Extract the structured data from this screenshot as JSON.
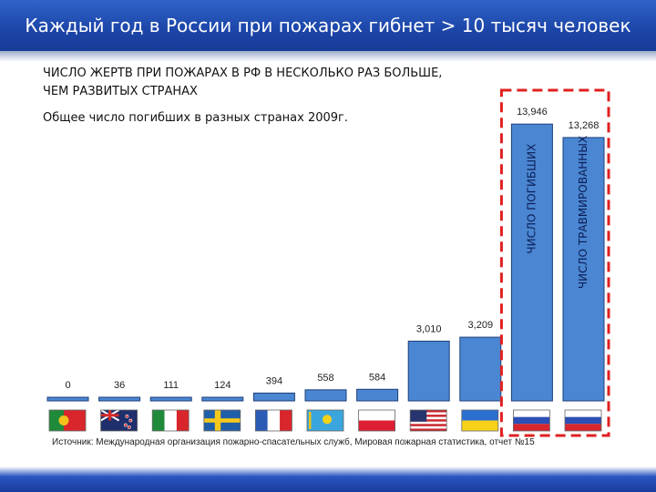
{
  "header": {
    "title": "Каждый год в России при пожарах гибнет > 10 тысяч человек"
  },
  "heading": {
    "line1": "ЧИСЛО ЖЕРТВ ПРИ ПОЖАРАХ В РФ В НЕСКОЛЬКО РАЗ БОЛЬШЕ,",
    "line2": "ЧЕМ РАЗВИТЫХ СТРАНАХ"
  },
  "subheading": "Общее число погибших в разных странах 2009г.",
  "source": "Источник: Международная организация пожарно-спасательных служб, Мировая пожарная статистика, отчет №15",
  "colors": {
    "bar": "#4a86d2",
    "bar_stroke": "#1e3f7a",
    "highlight": "#e02020",
    "header": "#1c45a8"
  },
  "chart_data": {
    "type": "bar",
    "categories": [
      "Португалия",
      "Новая Зеландия",
      "Италия",
      "Швеция",
      "Франция",
      "Казахстан",
      "Польша",
      "США",
      "Украина",
      "Россия",
      "Россия"
    ],
    "icons": [
      "portugal-flag",
      "new-zealand-flag",
      "italy-flag",
      "sweden-flag",
      "france-flag",
      "kazakhstan-flag",
      "poland-flag",
      "usa-flag",
      "ukraine-flag",
      "russia-flag",
      "russia-flag"
    ],
    "values": [
      0,
      36,
      111,
      124,
      394,
      558,
      584,
      3010,
      3209,
      13946,
      13268
    ],
    "value_labels": [
      "0",
      "36",
      "111",
      "124",
      "394",
      "558",
      "584",
      "3,010",
      "3,209",
      "13,946",
      "13,268"
    ],
    "bar_texts": [
      "",
      "",
      "",
      "",
      "",
      "",
      "",
      "",
      "",
      "ЧИСЛО ПОГИБШИХ",
      "ЧИСЛО ТРАВМИРОВАННЫХ"
    ],
    "highlight_group": [
      9,
      10
    ],
    "ylim": [
      0,
      14000
    ],
    "grid": false,
    "xlabel": "",
    "ylabel": ""
  }
}
